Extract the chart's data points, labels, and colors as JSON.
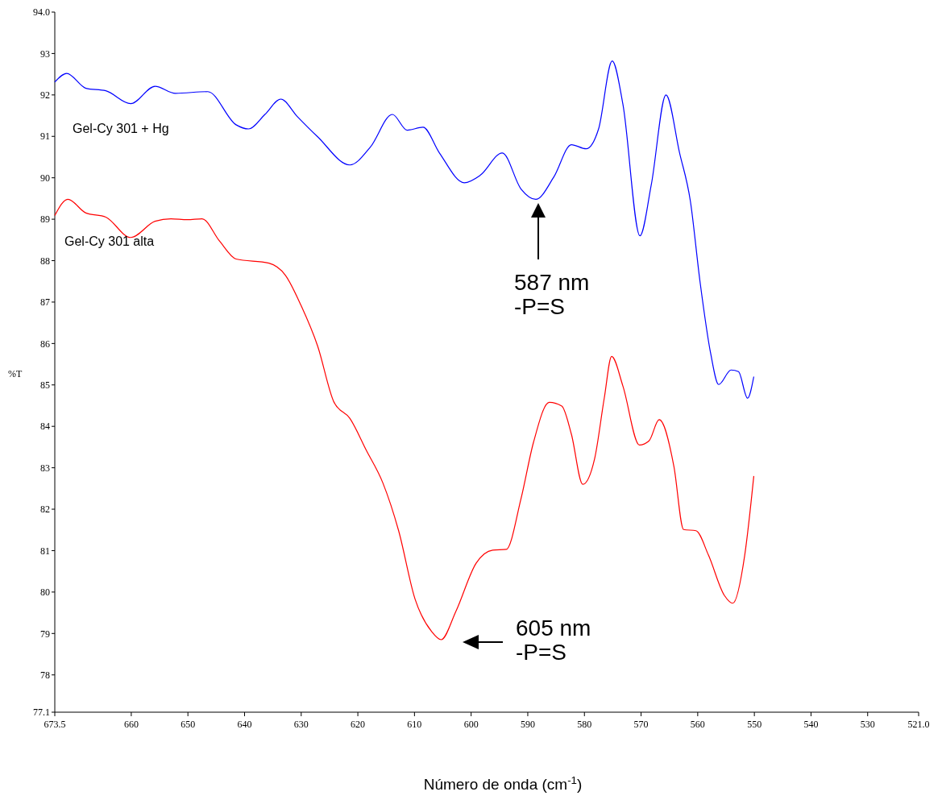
{
  "chart_data": {
    "type": "line",
    "xlabel": "Número de onda (cm$^{-1}$)",
    "ylabel": "%T",
    "xlim": [
      673.5,
      521
    ],
    "ylim": [
      77.1,
      94
    ],
    "xticks": [
      673.5,
      660,
      650,
      640,
      630,
      620,
      610,
      600,
      590,
      580,
      570,
      560,
      550,
      540,
      530,
      {
        "value": 521,
        "label": "521.0"
      }
    ],
    "yticks": [
      77.1,
      78,
      79,
      80,
      81,
      82,
      83,
      84,
      85,
      86,
      87,
      88,
      89,
      90,
      91,
      92,
      93,
      {
        "value": 94,
        "label": "94.0"
      }
    ],
    "grid": false,
    "line_style": "solid",
    "series": [
      {
        "name": "Gel-Cy 301 + Hg",
        "color": "#0000ff",
        "x": [
          673.5,
          671.4,
          668.0,
          664.5,
          660.1,
          655.8,
          652.2,
          646.5,
          641.5,
          639.3,
          636.4,
          633.6,
          630.7,
          627.1,
          621.4,
          617.8,
          613.9,
          611.3,
          608.5,
          605.6,
          601.2,
          598.4,
          594.5,
          591.2,
          588.6,
          585.4,
          582.3,
          579.7,
          577.5,
          575.1,
          573.2,
          570.2,
          568.2,
          565.6,
          563.2,
          561.3,
          559.6,
          557.7,
          556.3,
          554.1,
          552.8,
          551.2,
          550.1
        ],
        "values": [
          92.31,
          92.52,
          92.16,
          92.1,
          91.79,
          92.21,
          92.04,
          92.08,
          91.28,
          91.18,
          91.53,
          91.9,
          91.48,
          90.99,
          90.31,
          90.74,
          91.53,
          91.15,
          91.22,
          90.6,
          89.88,
          90.06,
          90.6,
          89.73,
          89.48,
          90.02,
          90.8,
          90.7,
          91.18,
          92.82,
          91.77,
          88.6,
          89.83,
          92.0,
          90.6,
          89.44,
          87.5,
          85.75,
          85.01,
          85.36,
          85.32,
          84.68,
          85.2
        ]
      },
      {
        "name": "Gel-Cy 301 alta",
        "color": "#ff0000",
        "x": [
          673.5,
          671.2,
          668.0,
          664.5,
          660.1,
          655.8,
          653.0,
          650.1,
          647.5,
          644.4,
          641.5,
          635.7,
          632.8,
          630.0,
          627.1,
          624.2,
          621.4,
          618.5,
          615.6,
          612.8,
          609.9,
          607.0,
          605.3,
          602.7,
          599.1,
          596.2,
          593.8,
          591.2,
          589.0,
          586.2,
          584.0,
          582.3,
          580.3,
          578.2,
          576.5,
          575.2,
          573.2,
          570.3,
          568.6,
          566.8,
          564.2,
          562.5,
          560.3,
          558.1,
          555.3,
          553.8,
          551.7,
          550.1
        ],
        "values": [
          89.09,
          89.48,
          89.15,
          89.05,
          88.56,
          88.95,
          89.01,
          88.99,
          89.01,
          88.47,
          88.04,
          87.94,
          87.65,
          86.91,
          85.94,
          84.58,
          84.19,
          83.42,
          82.64,
          81.48,
          79.83,
          79.05,
          78.85,
          79.53,
          80.7,
          81.01,
          81.03,
          82.25,
          83.61,
          84.58,
          84.49,
          83.81,
          82.6,
          83.22,
          84.68,
          85.69,
          84.97,
          83.55,
          83.65,
          84.16,
          83.03,
          81.51,
          81.48,
          80.89,
          79.92,
          79.73,
          80.89,
          82.8
        ]
      }
    ],
    "annotations": [
      "587 nm\n-P=S",
      "605 nm\n-P=S"
    ]
  }
}
